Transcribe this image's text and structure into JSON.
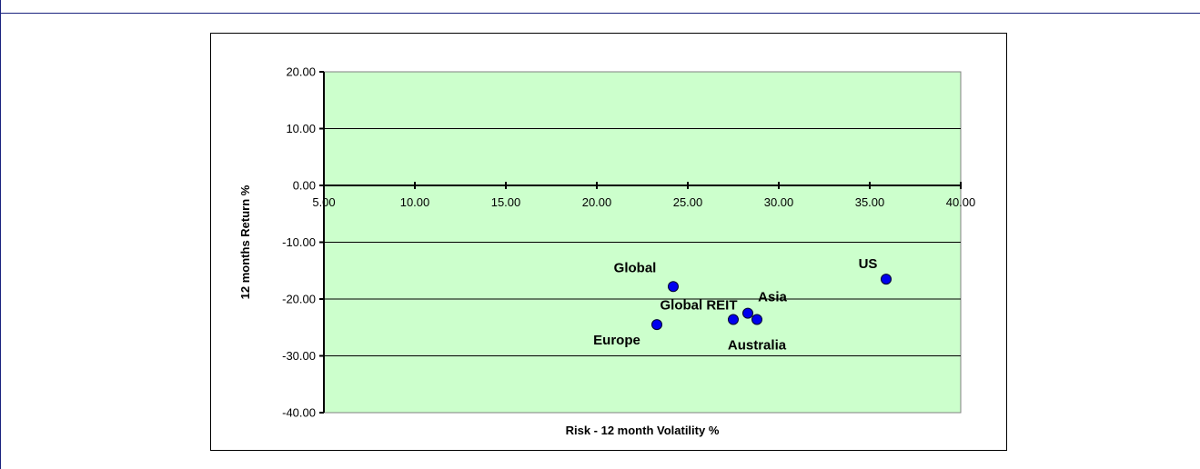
{
  "header": {
    "title_fragment": ""
  },
  "colors": {
    "plot_bg": "#ccffcc",
    "marker": "#0000ee",
    "frame": "#1a237e",
    "title": "#2b2ba8"
  },
  "chart_data": {
    "type": "scatter",
    "title": "",
    "xlabel": "Risk - 12 month Volatility %",
    "ylabel": "12 months Return  %",
    "xlim": [
      5,
      40
    ],
    "ylim": [
      -40,
      20
    ],
    "x_ticks": [
      "5.00",
      "10.00",
      "15.00",
      "20.00",
      "25.00",
      "30.00",
      "35.00",
      "40.00"
    ],
    "y_ticks": [
      "20.00",
      "10.00",
      "0.00",
      "-10.00",
      "-20.00",
      "-30.00",
      "-40.00"
    ],
    "grid": true,
    "points": [
      {
        "label": "US",
        "x": 35.9,
        "y": -16.5
      },
      {
        "label": "Global",
        "x": 24.2,
        "y": -17.8
      },
      {
        "label": "Global REIT",
        "x": 27.5,
        "y": -23.6
      },
      {
        "label": "Asia",
        "x": 28.3,
        "y": -22.5
      },
      {
        "label": "Australia",
        "x": 28.8,
        "y": -23.6
      },
      {
        "label": "Europe",
        "x": 23.3,
        "y": -24.5
      }
    ]
  }
}
